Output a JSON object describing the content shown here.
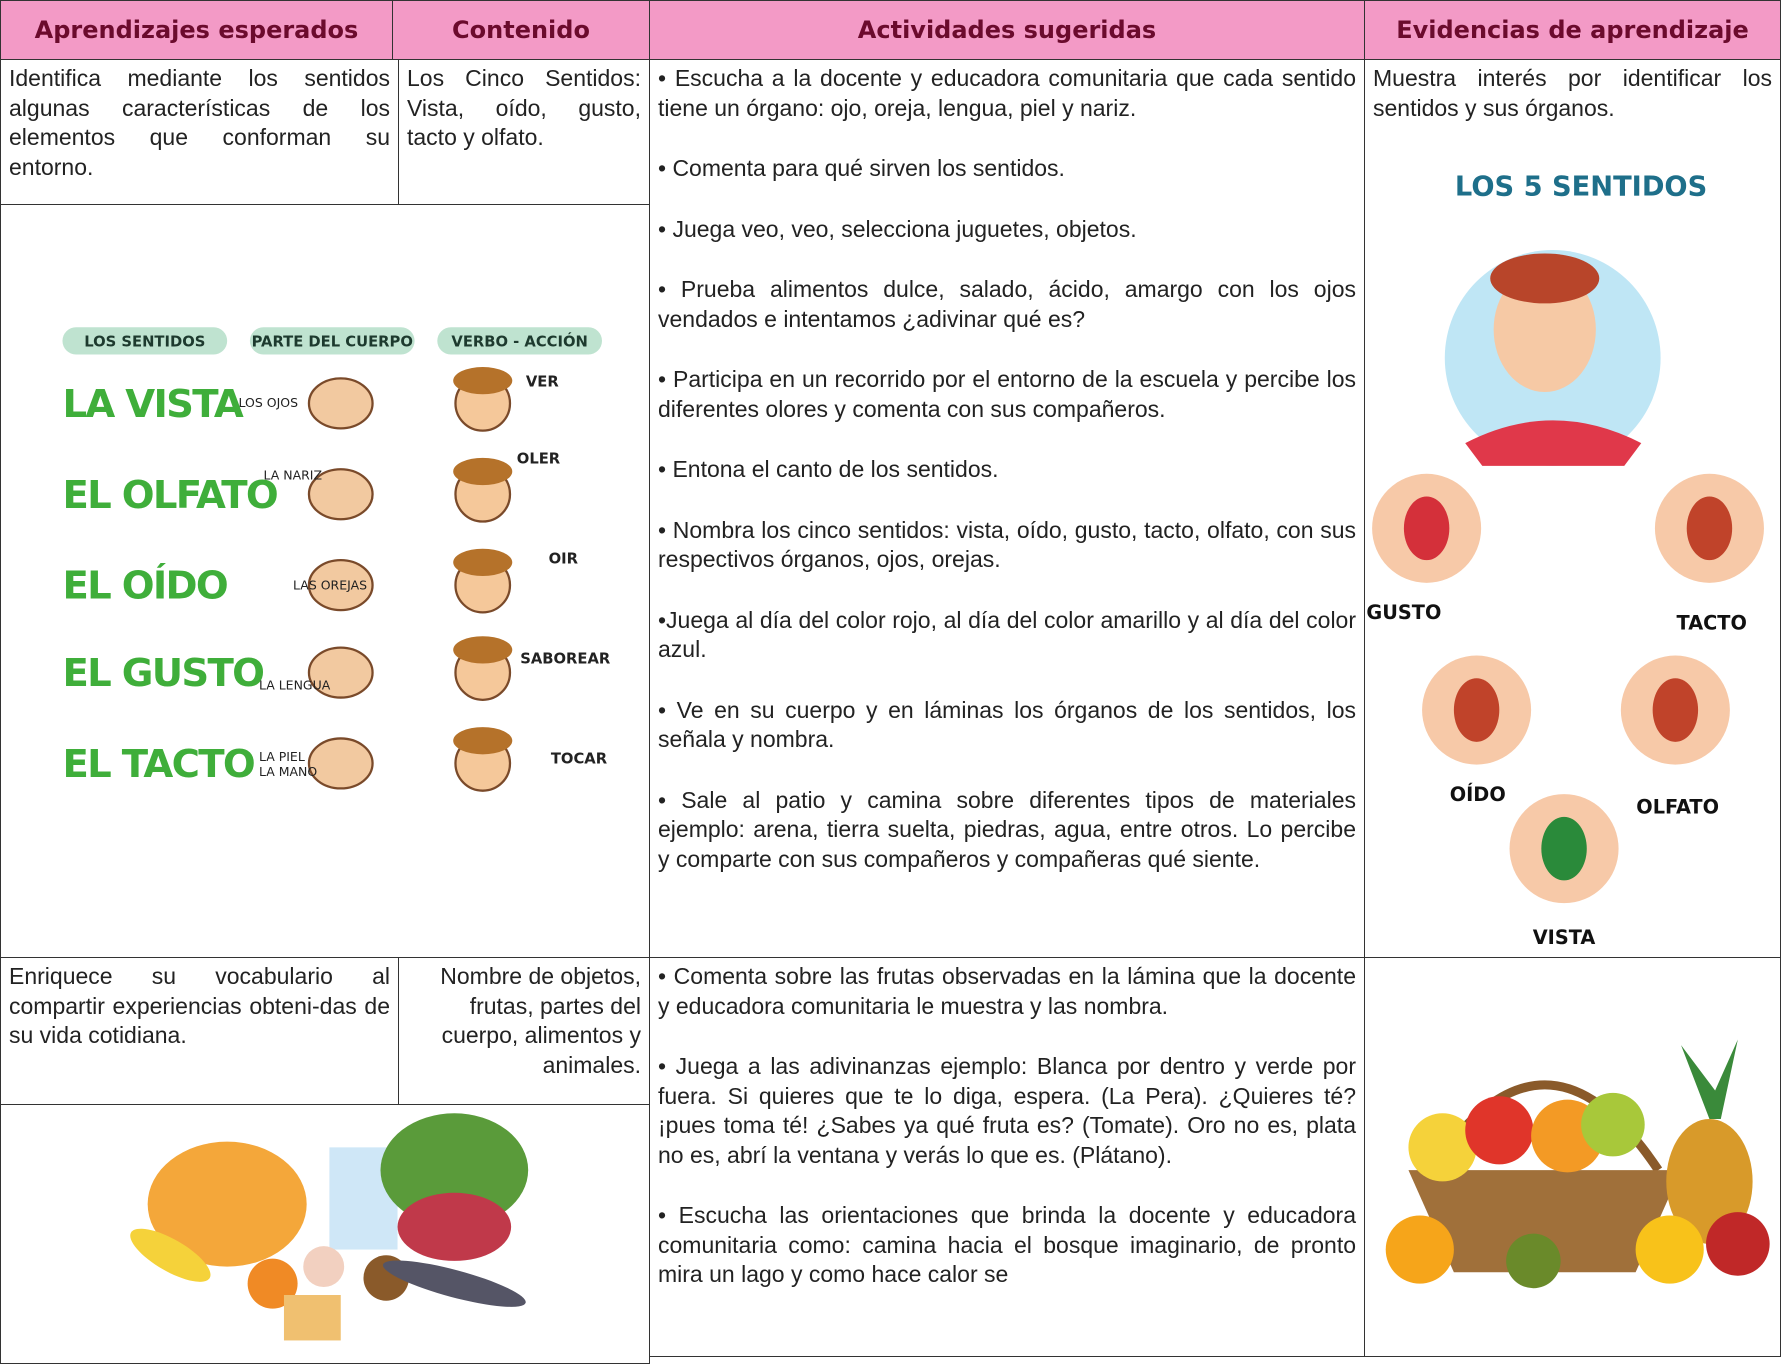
{
  "header": [
    "Aprendizajes esperados",
    "Contenido",
    "Actividades sugeridas",
    "Evidencias de aprendizaje"
  ],
  "rows": [
    {
      "aprendizaje": "Identifica mediante los sentidos algunas características de los elementos que conforman su entorno.",
      "contenido": "Los Cinco Sentidos: Vista, oído, gusto, tacto y olfato.",
      "actividades": [
        "• Escucha a la docente y educadora comunitaria que cada sentido tiene un órgano: ojo, oreja, lengua, piel y nariz.",
        "• Comenta para qué sirven los sentidos.",
        "• Juega veo, veo, selecciona juguetes, objetos.",
        "• Prueba alimentos dulce, salado, ácido, amargo con los ojos vendados e intentamos ¿adivinar qué es?",
        "• Participa en un recorrido por el entorno de la escuela y percibe los diferentes olores y comenta con sus compañeros.",
        "• Entona el canto de los sentidos.",
        "• Nombra los cinco sentidos: vista, oído, gusto, tacto, olfato, con sus respectivos órganos, ojos, orejas.",
        "•Juega al día del color rojo, al día del color amarillo y al día del color azul.",
        "• Ve en su cuerpo y en láminas los órganos de los sentidos, los señala y nombra.",
        "• Sale al patio y camina sobre diferentes tipos de materiales ejemplo: arena, tierra suelta, piedras, agua, entre otros. Lo percibe y comparte con sus compañeros y compañeras qué siente."
      ],
      "evidencia": "Muestra interés por identificar los sentidos y sus órganos."
    },
    {
      "aprendizaje": "Enriquece su vocabulario al compartir experiencias obteni-das de su vida cotidiana.",
      "contenido": "Nombre de objetos, frutas, partes del cuerpo, alimentos y animales.",
      "actividades": [
        "• Comenta sobre las frutas observadas en la lámina que la docente y educadora comunitaria le muestra y las nombra.",
        "• Juega a las adivinanzas ejemplo: Blanca por dentro y verde por fuera. Si quieres que te lo diga, espera. (La Pera). ¿Quieres té? ¡pues toma té! ¿Sabes ya qué fruta es? (Tomate). Oro no es, plata no es, abrí la ventana y verás lo que es. (Plátano).",
        "• Escucha las orientaciones que brinda la docente y educadora comunitaria como: camina hacia el bosque imaginario, de pronto mira un lago y como hace calor se"
      ],
      "evidencia": null
    }
  ],
  "sentidos_chart": {
    "headers": [
      "LOS SENTIDOS",
      "PARTE DEL CUERPO",
      "VERBO - ACCIÓN"
    ],
    "senses": [
      {
        "sense": "LA VISTA",
        "part": "LOS OJOS",
        "verb": "VER"
      },
      {
        "sense": "EL OLFATO",
        "part": "LA NARIZ",
        "verb": "OLER"
      },
      {
        "sense": "EL OÍDO",
        "part": "LAS OREJAS",
        "verb": "OIR"
      },
      {
        "sense": "EL GUSTO",
        "part": "LA LENGUA",
        "verb": "SABOREAR"
      },
      {
        "sense": "EL TACTO",
        "part": "LA PIEL\nLA MANO",
        "verb": "TOCAR"
      }
    ]
  },
  "cinco_sentidos": {
    "title": "LOS 5 SENTIDOS",
    "labels": [
      "GUSTO",
      "TACTO",
      "OÍDO",
      "OLFATO",
      "VISTA"
    ]
  }
}
